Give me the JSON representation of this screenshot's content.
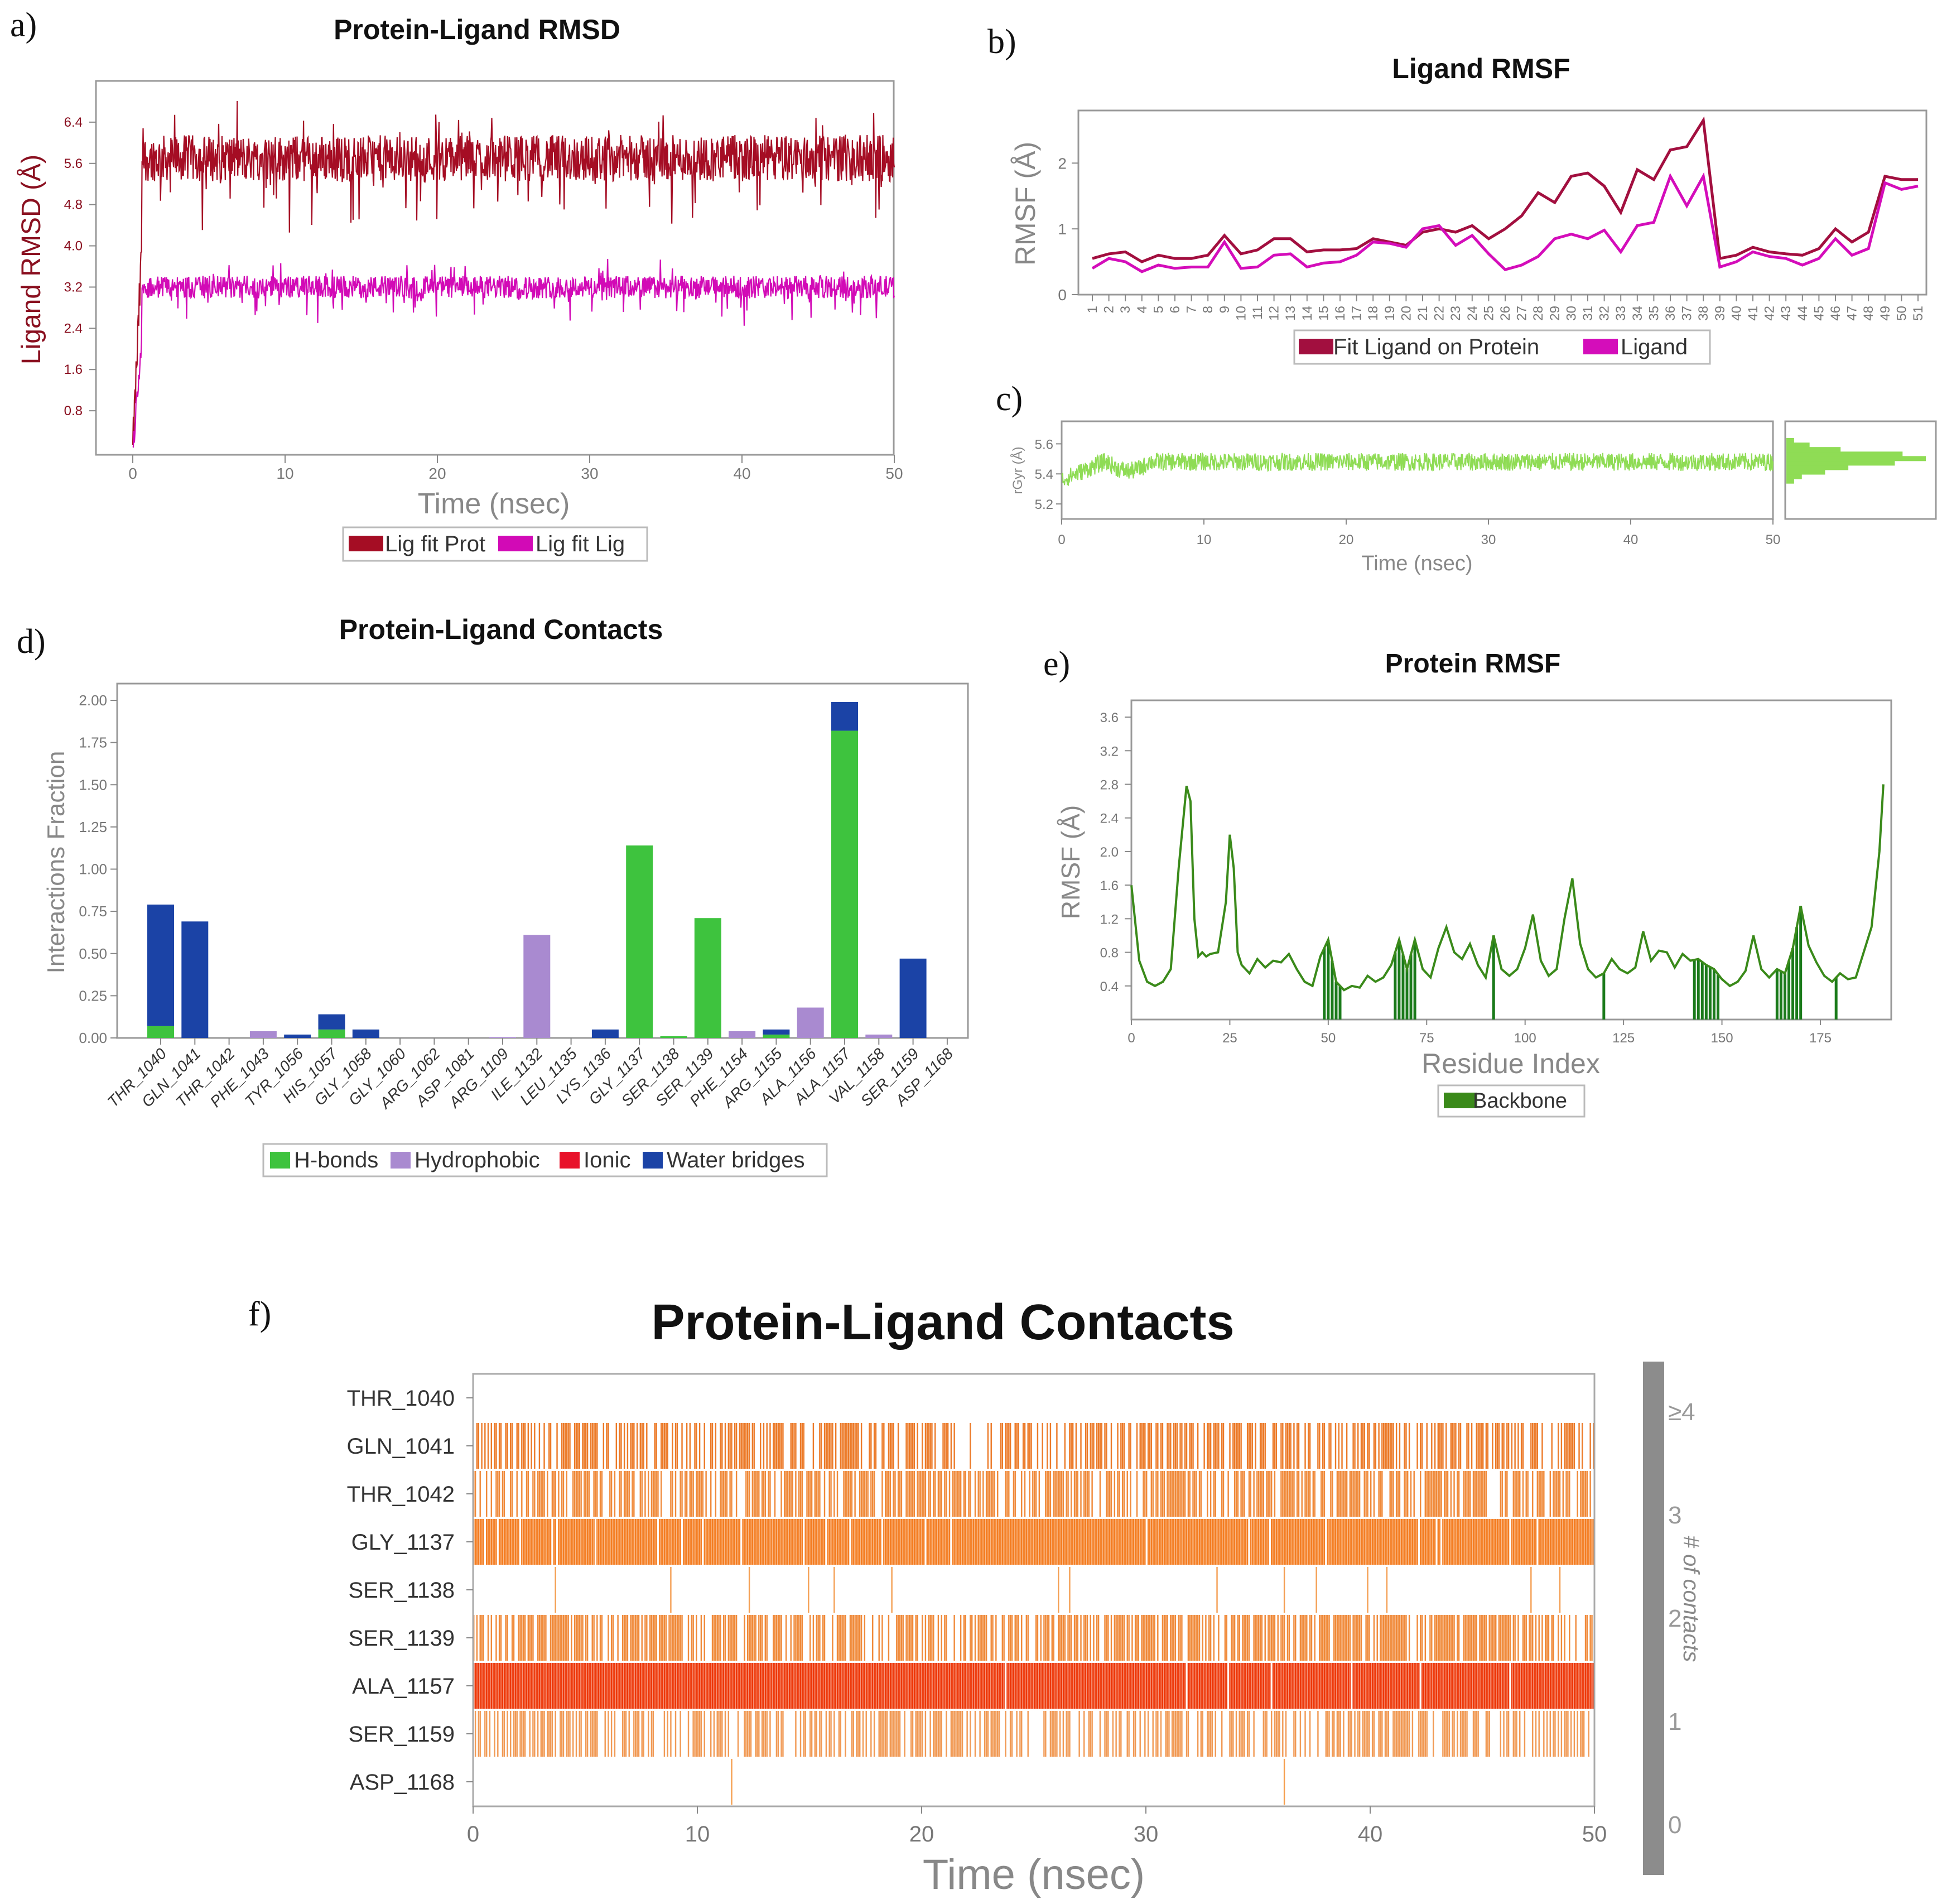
{
  "panels": {
    "a": "a)",
    "b": "b)",
    "c": "c)",
    "d": "d)",
    "e": "e)",
    "f": "f)"
  },
  "chart_data": [
    {
      "id": "a",
      "type": "line",
      "title": "Protein-Ligand RMSD",
      "xlabel": "Time (nsec)",
      "ylabel": "Ligand RMSD (Å)",
      "xlim": [
        0,
        50
      ],
      "ylim": [
        0,
        7.2
      ],
      "xticks": [
        0,
        10,
        20,
        30,
        40,
        50
      ],
      "yticks": [
        0.8,
        1.6,
        2.4,
        3.2,
        4.0,
        4.8,
        5.6,
        6.4
      ],
      "series": [
        {
          "name": "Lig fit Prot",
          "color": "#a50d24",
          "mean": 5.7,
          "noise": 0.45
        },
        {
          "name": "Lig fit Lig",
          "color": "#d20ab6",
          "mean": 3.2,
          "noise": 0.22
        }
      ]
    },
    {
      "id": "b",
      "type": "line",
      "title": "Ligand RMSF",
      "xlabel": "",
      "ylabel": "RMSF (Å)",
      "ylim": [
        0,
        2.8
      ],
      "yticks": [
        0,
        1,
        2
      ],
      "categories": [
        "1",
        "2",
        "3",
        "4",
        "5",
        "6",
        "7",
        "8",
        "9",
        "10",
        "11",
        "12",
        "13",
        "14",
        "15",
        "16",
        "17",
        "18",
        "19",
        "20",
        "21",
        "22",
        "23",
        "24",
        "25",
        "26",
        "27",
        "28",
        "29",
        "30",
        "31",
        "32",
        "33",
        "34",
        "35",
        "36",
        "37",
        "38",
        "39",
        "40",
        "41",
        "42",
        "43",
        "44",
        "45",
        "46",
        "47",
        "48",
        "49",
        "50",
        "51"
      ],
      "series": [
        {
          "name": "Fit Ligand on Protein",
          "color": "#a20f3f",
          "values": [
            0.55,
            0.62,
            0.65,
            0.5,
            0.6,
            0.55,
            0.55,
            0.6,
            0.9,
            0.62,
            0.68,
            0.85,
            0.85,
            0.65,
            0.68,
            0.68,
            0.7,
            0.85,
            0.8,
            0.75,
            0.95,
            1.0,
            0.95,
            1.05,
            0.85,
            1.0,
            1.2,
            1.55,
            1.4,
            1.8,
            1.85,
            1.65,
            1.25,
            1.9,
            1.75,
            2.2,
            2.25,
            2.65,
            0.55,
            0.6,
            0.72,
            0.65,
            0.62,
            0.6,
            0.7,
            1.0,
            0.8,
            0.95,
            1.8,
            1.75,
            1.75
          ]
        },
        {
          "name": "Ligand",
          "color": "#d40dba",
          "values": [
            0.4,
            0.55,
            0.5,
            0.35,
            0.45,
            0.4,
            0.42,
            0.42,
            0.8,
            0.4,
            0.42,
            0.6,
            0.62,
            0.42,
            0.48,
            0.5,
            0.6,
            0.8,
            0.78,
            0.72,
            1.0,
            1.05,
            0.75,
            0.9,
            0.62,
            0.38,
            0.45,
            0.58,
            0.85,
            0.92,
            0.85,
            0.98,
            0.65,
            1.05,
            1.1,
            1.8,
            1.35,
            1.8,
            0.42,
            0.5,
            0.65,
            0.58,
            0.55,
            0.45,
            0.55,
            0.85,
            0.6,
            0.7,
            1.7,
            1.6,
            1.65
          ]
        }
      ]
    },
    {
      "id": "c",
      "type": "line",
      "title": "",
      "xlabel": "Time (nsec)",
      "ylabel": "rGyr (Å)",
      "xlim": [
        0,
        50
      ],
      "ylim": [
        5.1,
        5.75
      ],
      "xticks": [
        0,
        10,
        20,
        30,
        40,
        50
      ],
      "yticks": [
        5.2,
        5.4,
        5.6
      ],
      "series": [
        {
          "name": "rGyr",
          "color": "#8fdc55",
          "mean": 5.48,
          "noise": 0.06
        }
      ],
      "histogram": {
        "bins": [
          5.35,
          5.38,
          5.41,
          5.44,
          5.47,
          5.5,
          5.53,
          5.56,
          5.59,
          5.62
        ],
        "counts": [
          1,
          2,
          5,
          8,
          14,
          18,
          15,
          7,
          3,
          1
        ]
      }
    },
    {
      "id": "d",
      "type": "bar",
      "title": "Protein-Ligand Contacts",
      "xlabel": "",
      "ylabel": "Interactions Fraction",
      "ylim": [
        0,
        2.1
      ],
      "yticks": [
        0.0,
        0.25,
        0.5,
        0.75,
        1.0,
        1.25,
        1.5,
        1.75,
        2.0
      ],
      "categories": [
        "THR_1040",
        "GLN_1041",
        "THR_1042",
        "PHE_1043",
        "TYR_1056",
        "HIS_1057",
        "GLY_1058",
        "GLY_1060",
        "ARG_1062",
        "ASP_1081",
        "ARG_1109",
        "ILE_1132",
        "LEU_1135",
        "LYS_1136",
        "GLY_1137",
        "SER_1138",
        "SER_1139",
        "PHE_1154",
        "ARG_1155",
        "ALA_1156",
        "ALA_1157",
        "VAL_1158",
        "SER_1159",
        "ASP_1168"
      ],
      "series": [
        {
          "name": "H-bonds",
          "color": "#3ec33e",
          "values": [
            0.07,
            0,
            0,
            0,
            0,
            0.05,
            0,
            0,
            0,
            0,
            0,
            0,
            0,
            0,
            1.14,
            0.01,
            0.71,
            0,
            0.02,
            0,
            1.82,
            0,
            0,
            0
          ]
        },
        {
          "name": "Hydrophobic",
          "color": "#a98ad0",
          "values": [
            0,
            0,
            0,
            0.04,
            0,
            0,
            0,
            0,
            0,
            0,
            0.005,
            0.61,
            0,
            0,
            0,
            0,
            0,
            0.04,
            0,
            0.18,
            0,
            0.02,
            0,
            0
          ]
        },
        {
          "name": "Ionic",
          "color": "#e8122a",
          "values": [
            0,
            0,
            0,
            0,
            0,
            0,
            0,
            0,
            0,
            0,
            0,
            0,
            0,
            0,
            0,
            0,
            0,
            0,
            0,
            0,
            0,
            0,
            0,
            0
          ]
        },
        {
          "name": "Water bridges",
          "color": "#1b43a6",
          "values": [
            0.72,
            0.69,
            0,
            0,
            0.02,
            0.09,
            0.05,
            0,
            0,
            0,
            0,
            0,
            0,
            0.05,
            0,
            0,
            0,
            0,
            0.03,
            0,
            0.17,
            0,
            0.47,
            0
          ]
        }
      ]
    },
    {
      "id": "e",
      "type": "line",
      "title": "Protein RMSF",
      "xlabel": "Residue Index",
      "ylabel": "RMSF (Å)",
      "xlim": [
        0,
        193
      ],
      "ylim": [
        0,
        3.8
      ],
      "xticks": [
        0,
        25,
        50,
        75,
        100,
        125,
        150,
        175
      ],
      "yticks": [
        0.4,
        0.8,
        1.2,
        1.6,
        2.0,
        2.4,
        2.8,
        3.2,
        3.6
      ],
      "series": [
        {
          "name": "Backbone",
          "color": "#3a8a1a",
          "points": [
            [
              0,
              1.6
            ],
            [
              2,
              0.7
            ],
            [
              4,
              0.45
            ],
            [
              6,
              0.4
            ],
            [
              8,
              0.45
            ],
            [
              10,
              0.6
            ],
            [
              12,
              1.8
            ],
            [
              14,
              2.78
            ],
            [
              15,
              2.6
            ],
            [
              16,
              1.2
            ],
            [
              17,
              0.75
            ],
            [
              18,
              0.8
            ],
            [
              19,
              0.75
            ],
            [
              20,
              0.78
            ],
            [
              22,
              0.8
            ],
            [
              24,
              1.4
            ],
            [
              25,
              2.2
            ],
            [
              26,
              1.8
            ],
            [
              27,
              0.8
            ],
            [
              28,
              0.65
            ],
            [
              30,
              0.55
            ],
            [
              32,
              0.72
            ],
            [
              34,
              0.62
            ],
            [
              36,
              0.7
            ],
            [
              38,
              0.68
            ],
            [
              40,
              0.78
            ],
            [
              42,
              0.6
            ],
            [
              44,
              0.45
            ],
            [
              46,
              0.4
            ],
            [
              48,
              0.75
            ],
            [
              50,
              0.95
            ],
            [
              52,
              0.45
            ],
            [
              54,
              0.35
            ],
            [
              56,
              0.4
            ],
            [
              58,
              0.38
            ],
            [
              60,
              0.52
            ],
            [
              62,
              0.45
            ],
            [
              64,
              0.5
            ],
            [
              66,
              0.65
            ],
            [
              68,
              0.95
            ],
            [
              70,
              0.6
            ],
            [
              72,
              0.95
            ],
            [
              74,
              0.6
            ],
            [
              76,
              0.5
            ],
            [
              78,
              0.85
            ],
            [
              80,
              1.1
            ],
            [
              82,
              0.8
            ],
            [
              84,
              0.72
            ],
            [
              86,
              0.9
            ],
            [
              88,
              0.65
            ],
            [
              90,
              0.5
            ],
            [
              92,
              1.0
            ],
            [
              94,
              0.6
            ],
            [
              96,
              0.52
            ],
            [
              98,
              0.6
            ],
            [
              100,
              0.85
            ],
            [
              102,
              1.25
            ],
            [
              104,
              0.7
            ],
            [
              106,
              0.52
            ],
            [
              108,
              0.6
            ],
            [
              110,
              1.2
            ],
            [
              112,
              1.68
            ],
            [
              114,
              0.9
            ],
            [
              116,
              0.6
            ],
            [
              118,
              0.5
            ],
            [
              120,
              0.55
            ],
            [
              122,
              0.72
            ],
            [
              124,
              0.6
            ],
            [
              126,
              0.55
            ],
            [
              128,
              0.62
            ],
            [
              130,
              1.05
            ],
            [
              132,
              0.7
            ],
            [
              134,
              0.82
            ],
            [
              136,
              0.8
            ],
            [
              138,
              0.62
            ],
            [
              140,
              0.78
            ],
            [
              142,
              0.7
            ],
            [
              144,
              0.72
            ],
            [
              146,
              0.65
            ],
            [
              148,
              0.6
            ],
            [
              150,
              0.48
            ],
            [
              152,
              0.4
            ],
            [
              154,
              0.45
            ],
            [
              156,
              0.58
            ],
            [
              158,
              1.0
            ],
            [
              160,
              0.6
            ],
            [
              162,
              0.5
            ],
            [
              164,
              0.6
            ],
            [
              166,
              0.55
            ],
            [
              168,
              0.85
            ],
            [
              170,
              1.35
            ],
            [
              172,
              0.88
            ],
            [
              174,
              0.68
            ],
            [
              176,
              0.52
            ],
            [
              178,
              0.45
            ],
            [
              180,
              0.55
            ],
            [
              182,
              0.48
            ],
            [
              184,
              0.5
            ],
            [
              186,
              0.8
            ],
            [
              188,
              1.1
            ],
            [
              190,
              2.0
            ],
            [
              191,
              2.8
            ]
          ]
        }
      ],
      "contact_residues": [
        49,
        50,
        51,
        52,
        53,
        67,
        68,
        69,
        70,
        71,
        72,
        92,
        120,
        143,
        144,
        145,
        146,
        147,
        148,
        149,
        164,
        165,
        166,
        167,
        168,
        169,
        170,
        179
      ]
    },
    {
      "id": "f",
      "type": "heatmap",
      "title": "Protein-Ligand Contacts",
      "xlabel": "Time (nsec)",
      "ylabel": "",
      "xlim": [
        0,
        50
      ],
      "xticks": [
        0,
        10,
        20,
        30,
        40,
        50
      ],
      "rows": [
        "THR_1040",
        "GLN_1041",
        "THR_1042",
        "GLY_1137",
        "SER_1138",
        "SER_1139",
        "ALA_1157",
        "SER_1159",
        "ASP_1168"
      ],
      "row_density": [
        0.0,
        0.55,
        0.6,
        0.97,
        0.02,
        0.65,
        0.99,
        0.5,
        0.005
      ],
      "row_color": [
        "#f08030",
        "#ec7a28",
        "#f08a3a",
        "#f47f25",
        "#f4a055",
        "#f08a3a",
        "#ee3a0c",
        "#f19a55",
        "#f5a050"
      ],
      "colorbar": {
        "label": "# of contacts",
        "ticks": [
          "≥4",
          "3",
          "2",
          "1",
          "0"
        ]
      }
    }
  ]
}
